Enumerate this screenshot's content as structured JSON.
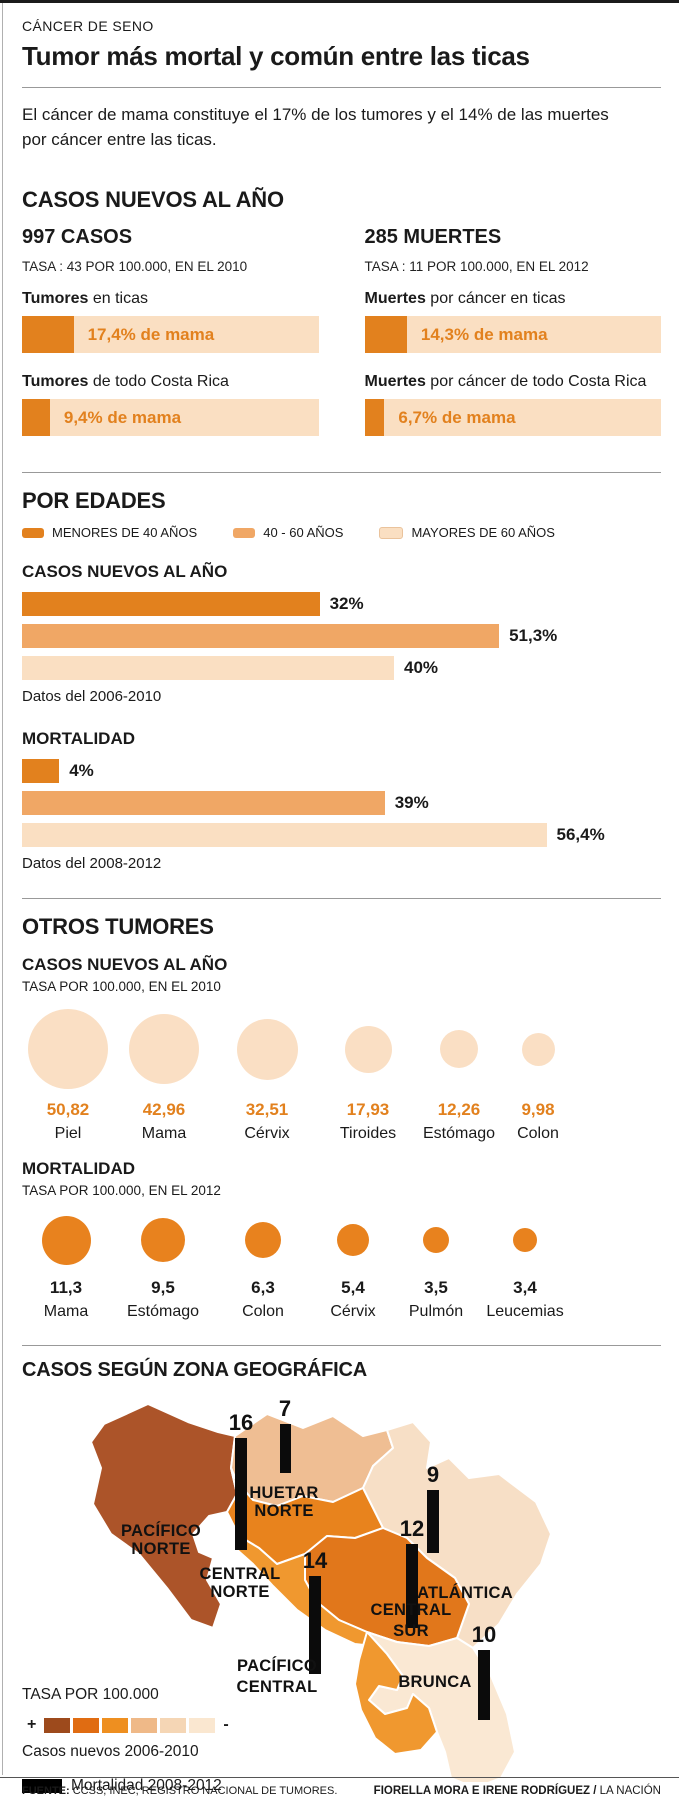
{
  "header": {
    "kicker": "CÁNCER DE SENO",
    "title": "Tumor más mortal y común entre las ticas"
  },
  "intro": "El cáncer de mama constituye el 17% de los tumores y el 14% de las muertes por cáncer entre las ticas.",
  "colors": {
    "orange_dark": "#E2811E",
    "orange_mid": "#F0A765",
    "peach_light": "#FADFC2",
    "map_pacifico_norte": "#AC5429",
    "map_huetar_norte": "#EFBE93",
    "map_atlantica": "#F7DFC6",
    "map_central_norte": "#E8831D",
    "map_central_sur": "#E1771B",
    "map_pacifico_central": "#F0982F",
    "map_brunca": "#FAE8D3"
  },
  "new_cases": {
    "title": "CASOS NUEVOS AL AÑO",
    "cols": [
      {
        "headline": "997 CASOS",
        "rate": "TASA : 43 POR 100.000, EN EL 2010",
        "bars": [
          {
            "label_bold": "Tumores",
            "label_rest": " en ticas",
            "value": 17.4,
            "value_label": "17,4% de mama"
          },
          {
            "label_bold": "Tumores",
            "label_rest": " de todo Costa Rica",
            "value": 9.4,
            "value_label": "9,4% de mama"
          }
        ]
      },
      {
        "headline": "285 MUERTES",
        "rate": "TASA : 11 POR 100.000, EN EL 2012",
        "bars": [
          {
            "label_bold": "Muertes",
            "label_rest": " por cáncer en ticas",
            "value": 14.3,
            "value_label": "14,3% de mama"
          },
          {
            "label_bold": "Muertes",
            "label_rest": " por cáncer de todo Costa Rica",
            "value": 6.7,
            "value_label": "6,7% de mama"
          }
        ]
      }
    ]
  },
  "by_age": {
    "title": "POR EDADES",
    "legend": [
      {
        "label": "MENORES DE 40 AÑOS"
      },
      {
        "label": "40 - 60 AÑOS"
      },
      {
        "label": "MAYORES DE 60 AÑOS"
      }
    ],
    "groups": [
      {
        "title": "CASOS NUEVOS AL AÑO",
        "note": "Datos del 2006-2010",
        "bars": [
          {
            "value": 32,
            "label": "32%"
          },
          {
            "value": 51.3,
            "label": "51,3%"
          },
          {
            "value": 40,
            "label": "40%"
          }
        ]
      },
      {
        "title": "MORTALIDAD",
        "note": "Datos del 2008-2012",
        "bars": [
          {
            "value": 4,
            "label": "4%"
          },
          {
            "value": 39,
            "label": "39%"
          },
          {
            "value": 56.4,
            "label": "56,4%"
          }
        ]
      }
    ]
  },
  "other_tumors": {
    "title": "OTROS TUMORES",
    "groups": [
      {
        "title": "CASOS NUEVOS AL AÑO",
        "rate": "TASA POR 100.000, EN EL 2010",
        "items": [
          {
            "name": "Piel",
            "value": "50,82",
            "d": 80
          },
          {
            "name": "Mama",
            "value": "42,96",
            "d": 70
          },
          {
            "name": "Cérvix",
            "value": "32,51",
            "d": 61
          },
          {
            "name": "Tiroides",
            "value": "17,93",
            "d": 47
          },
          {
            "name": "Estómago",
            "value": "12,26",
            "d": 38
          },
          {
            "name": "Colon",
            "value": "9,98",
            "d": 33
          }
        ]
      },
      {
        "title": "MORTALIDAD",
        "rate": "TASA POR 100.000, EN EL 2012",
        "items": [
          {
            "name": "Mama",
            "value": "11,3",
            "d": 49
          },
          {
            "name": "Estómago",
            "value": "9,5",
            "d": 44
          },
          {
            "name": "Colon",
            "value": "6,3",
            "d": 36
          },
          {
            "name": "Cérvix",
            "value": "5,4",
            "d": 32
          },
          {
            "name": "Pulmón",
            "value": "3,5",
            "d": 26
          },
          {
            "name": "Leucemias",
            "value": "3,4",
            "d": 24
          }
        ]
      }
    ]
  },
  "map": {
    "title": "CASOS SEGÚN ZONA GEOGRÁFICA",
    "regions": [
      {
        "line1": "PACÍFICO",
        "line2": "NORTE"
      },
      {
        "line1": "HUETAR",
        "line2": "NORTE"
      },
      {
        "line1": "CENTRAL",
        "line2": "NORTE"
      },
      {
        "line1": "ATLÁNTICA",
        "line2": ""
      },
      {
        "line1": "CENTRAL",
        "line2": "SUR"
      },
      {
        "line1": "PACÍFICO",
        "line2": "CENTRAL"
      },
      {
        "line1": "BRUNCA",
        "line2": ""
      }
    ],
    "bars": [
      {
        "label": "16",
        "value": 16,
        "region": "Pacífico Norte"
      },
      {
        "label": "7",
        "value": 7,
        "region": "Huetar Norte"
      },
      {
        "label": "9",
        "value": 9,
        "region": "Atlántica"
      },
      {
        "label": "12",
        "value": 12,
        "region": "Central Sur"
      },
      {
        "label": "14",
        "value": 14,
        "region": "Pacífico Central"
      },
      {
        "label": "10",
        "value": 10,
        "region": "Brunca"
      }
    ],
    "tasa_label": "TASA POR 100.000",
    "plus": "+",
    "minus": "-",
    "casos_label": "Casos nuevos 2006-2010",
    "mort_label": "Mortalidad 2008-2012"
  },
  "footer": {
    "source_bold": "FUENTE:",
    "source_rest": " CCSS, INEC, REGISTRO NACIONAL DE TUMORES.",
    "credit_bold": "FIORELLA MORA E IRENE RODRÍGUEZ /",
    "credit_rest": " LA NACIÓN"
  },
  "chart_data": [
    {
      "type": "bar",
      "title": "CASOS NUEVOS AL AÑO — 997 CASOS (TASA: 43 POR 100.000, EN EL 2010)",
      "categories": [
        "Tumores en ticas",
        "Tumores de todo Costa Rica"
      ],
      "values": [
        17.4,
        9.4
      ],
      "ylabel": "% de mama"
    },
    {
      "type": "bar",
      "title": "285 MUERTES (TASA: 11 POR 100.000, EN EL 2012)",
      "categories": [
        "Muertes por cáncer en ticas",
        "Muertes por cáncer de todo Costa Rica"
      ],
      "values": [
        14.3,
        6.7
      ],
      "ylabel": "% de mama"
    },
    {
      "type": "bar",
      "title": "POR EDADES — CASOS NUEVOS AL AÑO (Datos del 2006-2010)",
      "categories": [
        "MENORES DE 40 AÑOS",
        "40 - 60 AÑOS",
        "MAYORES DE 60 AÑOS"
      ],
      "values": [
        32,
        51.3,
        40
      ],
      "ylabel": "%"
    },
    {
      "type": "bar",
      "title": "POR EDADES — MORTALIDAD (Datos del 2008-2012)",
      "categories": [
        "MENORES DE 40 AÑOS",
        "40 - 60 AÑOS",
        "MAYORES DE 60 AÑOS"
      ],
      "values": [
        4,
        39,
        56.4
      ],
      "ylabel": "%"
    },
    {
      "type": "bubble",
      "title": "OTROS TUMORES — CASOS NUEVOS AL AÑO (TASA POR 100.000, EN EL 2010)",
      "categories": [
        "Piel",
        "Mama",
        "Cérvix",
        "Tiroides",
        "Estómago",
        "Colon"
      ],
      "values": [
        50.82,
        42.96,
        32.51,
        17.93,
        12.26,
        9.98
      ]
    },
    {
      "type": "bubble",
      "title": "OTROS TUMORES — MORTALIDAD (TASA POR 100.000, EN EL 2012)",
      "categories": [
        "Mama",
        "Estómago",
        "Colon",
        "Cérvix",
        "Pulmón",
        "Leucemias"
      ],
      "values": [
        11.3,
        9.5,
        6.3,
        5.4,
        3.5,
        3.4
      ]
    },
    {
      "type": "bar",
      "title": "CASOS SEGÚN ZONA GEOGRÁFICA — Mortalidad 2008-2012 (TASA POR 100.000)",
      "categories": [
        "Pacífico Norte",
        "Huetar Norte",
        "Atlántica",
        "Central Sur",
        "Pacífico Central",
        "Brunca"
      ],
      "values": [
        16,
        7,
        9,
        12,
        14,
        10
      ]
    }
  ]
}
